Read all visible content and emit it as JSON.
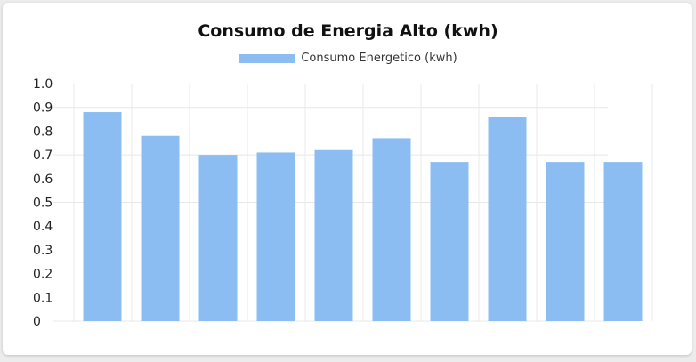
{
  "colors": {
    "bar": "#8bbdf3",
    "grid": "#e8e8e8",
    "background": "#ffffff"
  },
  "chart_data": {
    "type": "bar",
    "title": "Consumo de Energia Alto (kwh)",
    "xlabel": "",
    "ylabel": "",
    "ylim": [
      0,
      1.0
    ],
    "y_ticks": [
      "0",
      "0.1",
      "0.2",
      "0.3",
      "0.4",
      "0.5",
      "0.6",
      "0.7",
      "0.8",
      "0.9",
      "1.0"
    ],
    "grid": true,
    "legend_position": "top-center",
    "series": [
      {
        "name": "Consumo Energetico (kwh)",
        "values": [
          0.88,
          0.78,
          0.7,
          0.71,
          0.72,
          0.77,
          0.67,
          0.86,
          0.67,
          0.67
        ]
      }
    ]
  }
}
